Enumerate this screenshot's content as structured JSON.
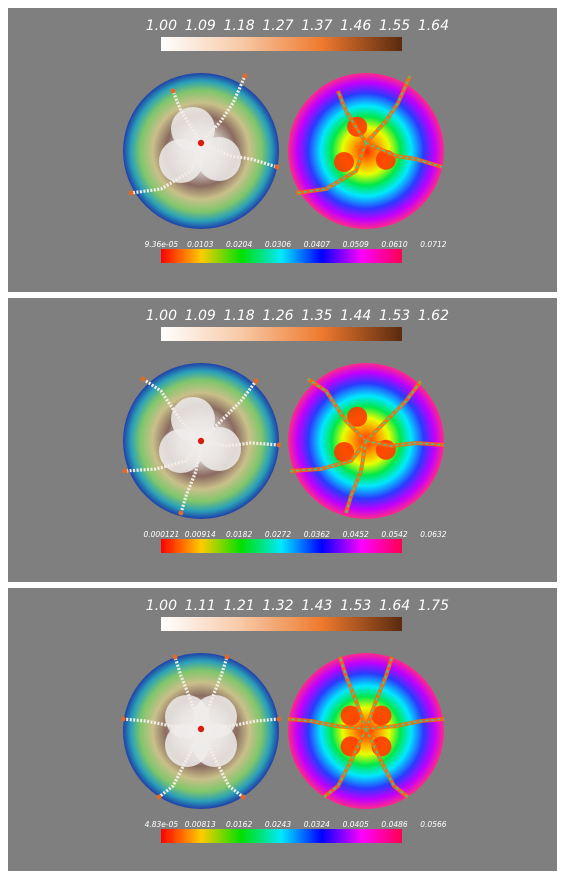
{
  "panels": [
    {
      "top_scale": {
        "labels": [
          "1.00",
          "1.09",
          "1.18",
          "1.27",
          "1.37",
          "1.46",
          "1.55",
          "1.64"
        ]
      },
      "bottom_scale": {
        "labels": [
          "9.36e-05",
          "0.0103",
          "0.0204",
          "0.0306",
          "0.0407",
          "0.0509",
          "0.0610",
          "0.0712"
        ]
      }
    },
    {
      "top_scale": {
        "labels": [
          "1.00",
          "1.09",
          "1.18",
          "1.26",
          "1.35",
          "1.44",
          "1.53",
          "1.62"
        ]
      },
      "bottom_scale": {
        "labels": [
          "0.000121",
          "0.00914",
          "0.0182",
          "0.0272",
          "0.0362",
          "0.0452",
          "0.0542",
          "0.0632"
        ]
      }
    },
    {
      "top_scale": {
        "labels": [
          "1.00",
          "1.11",
          "1.21",
          "1.32",
          "1.43",
          "1.53",
          "1.64",
          "1.75"
        ]
      },
      "bottom_scale": {
        "labels": [
          "4.83e-05",
          "0.00813",
          "0.0162",
          "0.0243",
          "0.0324",
          "0.0405",
          "0.0486",
          "0.0566"
        ]
      }
    }
  ],
  "colors": {
    "background": "#7f7f7f",
    "label_text": "#ffffff",
    "top_scale": [
      "#ffffff",
      "#f7c9a6",
      "#ee7a2e",
      "#5a2a10"
    ],
    "bottom_scale": [
      "#ff0000",
      "#ffcc00",
      "#00e000",
      "#00e8ff",
      "#0000ff",
      "#ff00ff",
      "#ff0050"
    ]
  }
}
